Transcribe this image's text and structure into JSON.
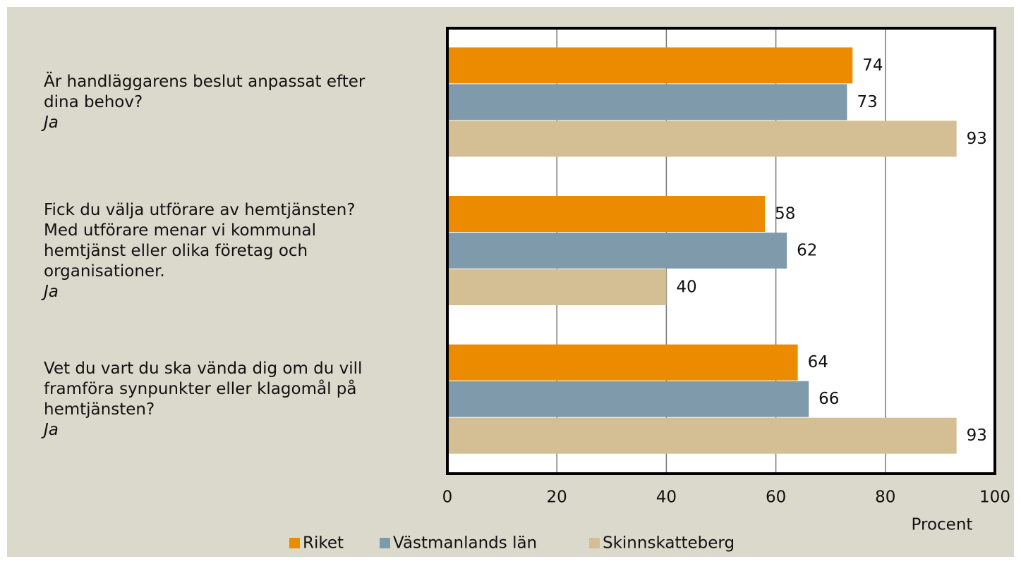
{
  "chart_data": {
    "type": "bar",
    "orientation": "horizontal",
    "categories": [
      [
        "Är handläggarens beslut anpassat efter",
        "dina behov?"
      ],
      [
        "Fick du välja utförare av hemtjänsten?",
        "Med utförare menar vi kommunal",
        "hemtjänst eller olika företag och",
        "organisationer."
      ],
      [
        "Vet du vart du ska vända dig om du vill",
        "framföra synpunkter eller klagomål på",
        "hemtjänsten?"
      ]
    ],
    "category_notes": [
      "Ja",
      "Ja",
      "Ja"
    ],
    "series": [
      {
        "name": "Riket",
        "color": "#ed8b00",
        "values": [
          74,
          58,
          64
        ]
      },
      {
        "name": "Västmanlands län",
        "color": "#7f9bab",
        "values": [
          73,
          62,
          66
        ]
      },
      {
        "name": "Skinnskatteberg",
        "color": "#d4be94",
        "values": [
          93,
          40,
          93
        ]
      }
    ],
    "xlabel": "Procent",
    "xlim": [
      0,
      100
    ],
    "xticks": [
      0,
      20,
      40,
      60,
      80,
      100
    ],
    "grid": true
  }
}
